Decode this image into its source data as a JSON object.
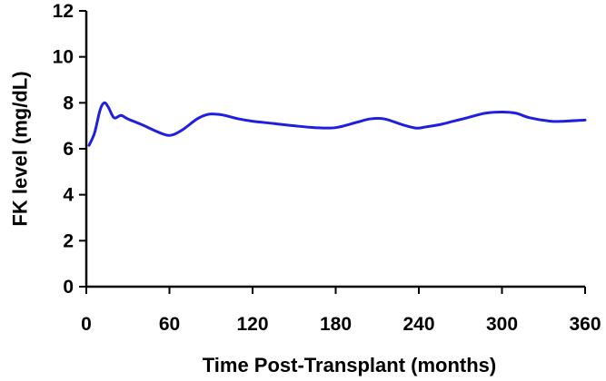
{
  "chart_data": {
    "type": "line",
    "title": "",
    "xlabel": "Time Post-Transplant (months)",
    "ylabel": "FK level (mg/dL)",
    "xlim": [
      0,
      360
    ],
    "ylim": [
      0,
      12
    ],
    "x_ticks": [
      0,
      60,
      120,
      180,
      240,
      300,
      360
    ],
    "y_ticks": [
      0,
      2,
      4,
      6,
      8,
      10,
      12
    ],
    "grid": false,
    "legend": "none",
    "series": [
      {
        "color": "#1f1fe0",
        "x": [
          2,
          6,
          10,
          13,
          16,
          20,
          25,
          30,
          40,
          55,
          62,
          70,
          80,
          88,
          95,
          100,
          110,
          120,
          135,
          150,
          165,
          180,
          195,
          205,
          215,
          228,
          238,
          245,
          255,
          265,
          275,
          288,
          300,
          310,
          320,
          335,
          345,
          360
        ],
        "y": [
          6.15,
          6.7,
          7.7,
          8.0,
          7.8,
          7.35,
          7.45,
          7.3,
          7.05,
          6.65,
          6.6,
          6.85,
          7.3,
          7.5,
          7.5,
          7.45,
          7.3,
          7.2,
          7.1,
          7.0,
          6.92,
          6.92,
          7.15,
          7.3,
          7.3,
          7.05,
          6.9,
          6.95,
          7.05,
          7.2,
          7.35,
          7.55,
          7.6,
          7.55,
          7.35,
          7.2,
          7.2,
          7.25
        ]
      }
    ]
  }
}
